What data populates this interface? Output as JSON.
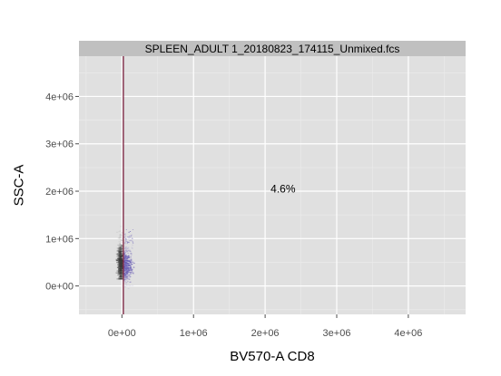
{
  "chart_data": {
    "type": "scatter",
    "title": "",
    "panel_title": "SPLEEN_ADULT 1_20180823_174115_Unmixed.fcs",
    "xlabel": "BV570-A CD8",
    "ylabel": "SSC-A",
    "xlim": [
      -600000,
      4800000
    ],
    "ylim": [
      -600000,
      4850000
    ],
    "x_ticks": [
      0,
      1000000,
      2000000,
      3000000,
      4000000
    ],
    "x_tick_labels": [
      "0e+00",
      "1e+06",
      "2e+06",
      "3e+06",
      "4e+06"
    ],
    "y_ticks": [
      0,
      1000000,
      2000000,
      3000000,
      4000000
    ],
    "y_tick_labels": [
      "0e+00",
      "1e+06",
      "2e+06",
      "3e+06",
      "4e+06"
    ],
    "gate_x": 20000,
    "annotation": {
      "text": "4.6%",
      "x": 2250000,
      "y": 2050000
    },
    "grid": true,
    "density": {
      "x_range": [
        -100000,
        180000
      ],
      "y_range": [
        150000,
        1400000
      ],
      "gated_color": "#6b5fb5",
      "ungated_color": "#3a3a3a"
    },
    "colors": {
      "panel_bg": "#e0e0e0",
      "strip_bg": "#c0c0c0",
      "grid": "#ffffff",
      "gate_line": "#7a1f3d"
    }
  }
}
